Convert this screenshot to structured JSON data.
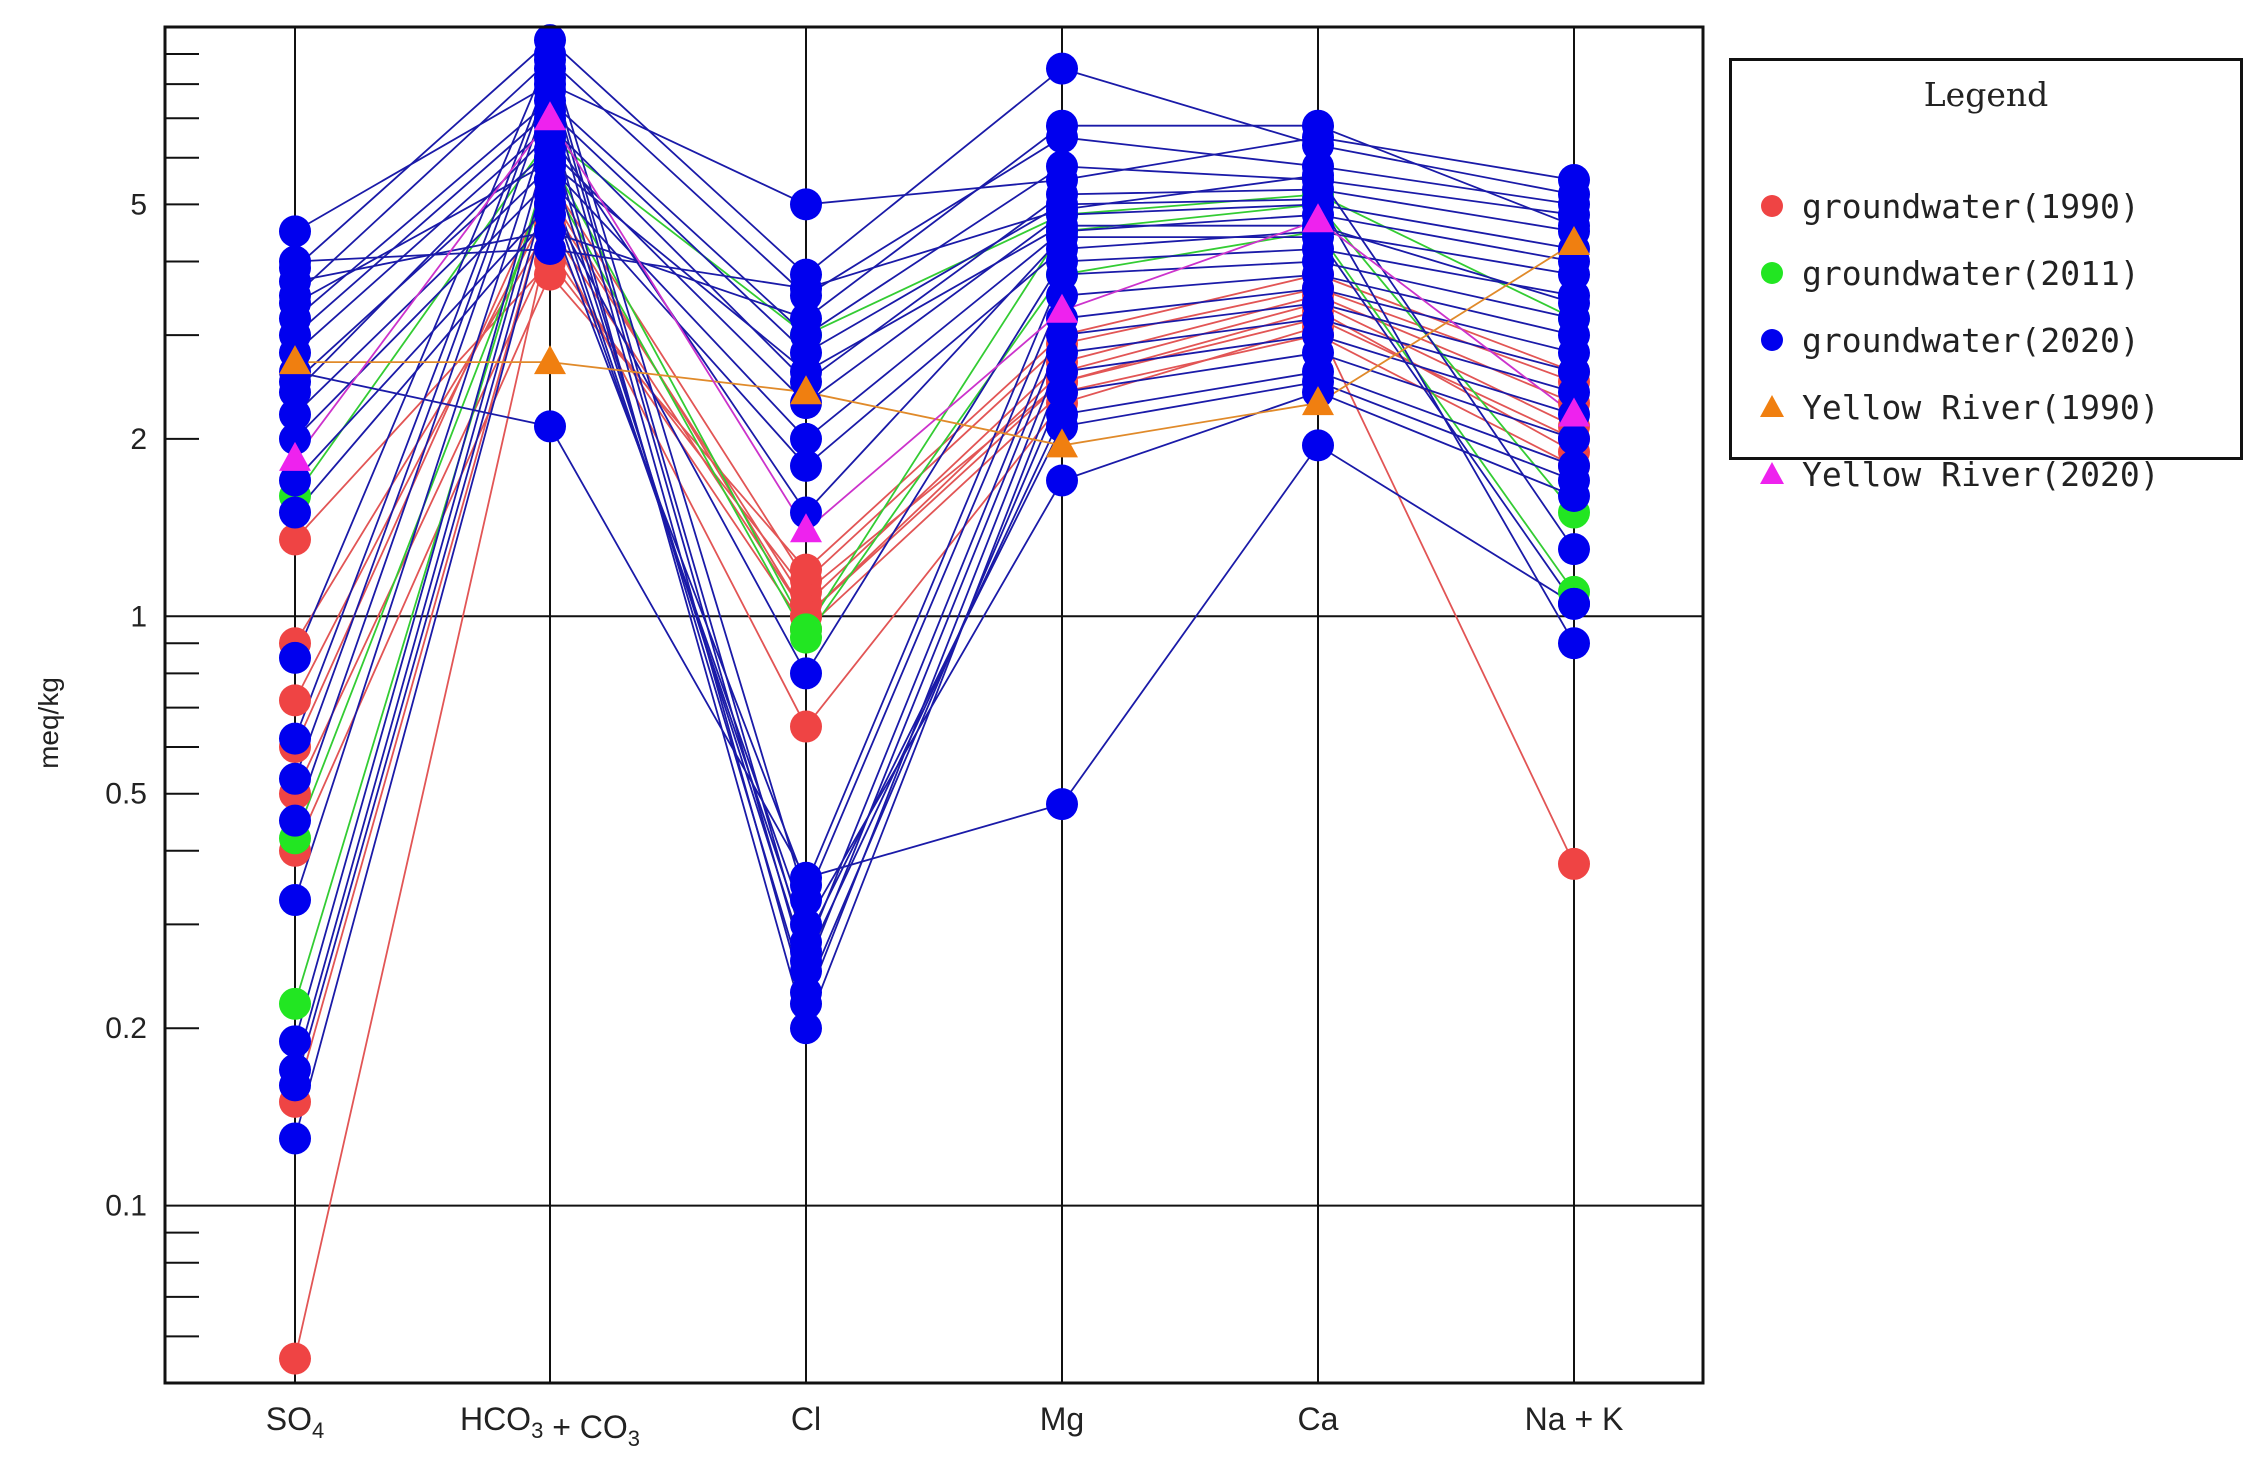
{
  "chart_data": {
    "type": "line",
    "subtype": "schoeller-diagram",
    "title": "",
    "ylabel": "meq/kg",
    "yscale": "log",
    "ylim": [
      0.05,
      10
    ],
    "categories": [
      "SO4",
      "HCO3 + CO3",
      "Cl",
      "Mg",
      "Ca",
      "Na + K"
    ],
    "category_labels": [
      {
        "base": "SO",
        "sub": "4",
        "tail": ""
      },
      {
        "base": "HCO",
        "sub": "3",
        "tail": " + CO",
        "sub2": "3"
      },
      {
        "base": "Cl",
        "sub": "",
        "tail": ""
      },
      {
        "base": "Mg",
        "sub": "",
        "tail": ""
      },
      {
        "base": "Ca",
        "sub": "",
        "tail": ""
      },
      {
        "base": "Na + K",
        "sub": "",
        "tail": ""
      }
    ],
    "yticks": [
      {
        "value": 5,
        "label": "5"
      },
      {
        "value": 2,
        "label": "2"
      },
      {
        "value": 1,
        "label": "1"
      },
      {
        "value": 0.5,
        "label": "0.5"
      },
      {
        "value": 0.2,
        "label": "0.2"
      },
      {
        "value": 0.1,
        "label": "0.1"
      }
    ],
    "major_gridlines": [
      1,
      0.1
    ],
    "legend": {
      "title": "Legend",
      "position": "top-right outside",
      "entries": [
        {
          "label": "groundwater(1990)",
          "marker": "circle",
          "color": "#ef4444"
        },
        {
          "label": "groundwater(2011)",
          "marker": "circle",
          "color": "#22e622"
        },
        {
          "label": "groundwater(2020)",
          "marker": "circle",
          "color": "#0000ee"
        },
        {
          "label": "Yellow River(1990)",
          "marker": "triangle",
          "color": "#f07f10"
        },
        {
          "label": "Yellow River(2020)",
          "marker": "triangle",
          "color": "#ee22ee"
        }
      ]
    },
    "series": [
      {
        "name": "groundwater(1990)",
        "color": "#ef4444",
        "line_color": "#e25555",
        "marker": "circle",
        "samples": [
          [
            0.055,
            4.5,
            0.65,
            2.3,
            3.1,
            0.38
          ],
          [
            1.35,
            4.0,
            1.1,
            2.5,
            3.3,
            1.9
          ],
          [
            0.9,
            4.6,
            1.0,
            2.6,
            3.4,
            2.1
          ],
          [
            0.72,
            5.0,
            1.05,
            2.7,
            3.5,
            2.3
          ],
          [
            0.6,
            5.5,
            1.15,
            2.9,
            3.6,
            2.5
          ],
          [
            0.5,
            4.2,
            0.95,
            2.4,
            3.0,
            1.8
          ],
          [
            0.4,
            3.8,
            1.2,
            3.0,
            3.8,
            2.6
          ],
          [
            0.15,
            5.2,
            1.0,
            2.5,
            3.2,
            2.0
          ]
        ]
      },
      {
        "name": "groundwater(2011)",
        "color": "#22e622",
        "line_color": "#33cc33",
        "marker": "circle",
        "samples": [
          [
            0.22,
            6.0,
            0.95,
            4.5,
            5.0,
            1.5
          ],
          [
            0.42,
            5.5,
            0.92,
            3.8,
            4.5,
            1.1
          ],
          [
            1.6,
            6.5,
            3.0,
            4.8,
            5.2,
            3.2
          ]
        ]
      },
      {
        "name": "groundwater(2020)",
        "color": "#0000ee",
        "line_color": "#1a1aa8",
        "marker": "circle",
        "samples": [
          [
            4.5,
            8.0,
            5.0,
            5.5,
            6.5,
            5.5
          ],
          [
            3.9,
            9.5,
            3.8,
            8.5,
            6.3,
            5.2
          ],
          [
            3.5,
            8.8,
            3.5,
            6.5,
            5.8,
            5.0
          ],
          [
            3.2,
            7.5,
            3.0,
            5.8,
            5.5,
            4.8
          ],
          [
            2.8,
            6.8,
            2.5,
            5.2,
            5.3,
            4.5
          ],
          [
            2.5,
            6.2,
            2.3,
            4.8,
            5.0,
            4.2
          ],
          [
            2.2,
            5.8,
            2.0,
            4.5,
            4.8,
            4.0
          ],
          [
            2.0,
            5.5,
            1.8,
            4.2,
            4.5,
            3.8
          ],
          [
            1.7,
            5.0,
            0.8,
            4.0,
            4.2,
            3.5
          ],
          [
            1.5,
            4.8,
            0.35,
            3.8,
            4.0,
            3.2
          ],
          [
            0.85,
            9.0,
            0.33,
            3.5,
            3.8,
            3.0
          ],
          [
            0.62,
            8.5,
            0.27,
            3.2,
            3.6,
            2.8
          ],
          [
            0.53,
            8.2,
            0.25,
            3.0,
            3.4,
            2.6
          ],
          [
            0.45,
            7.8,
            0.22,
            2.8,
            3.2,
            2.4
          ],
          [
            0.33,
            7.0,
            0.2,
            2.6,
            3.0,
            2.2
          ],
          [
            0.19,
            6.5,
            0.23,
            2.4,
            2.8,
            2.0
          ],
          [
            0.17,
            6.0,
            0.26,
            2.2,
            2.6,
            1.8
          ],
          [
            0.16,
            5.5,
            0.28,
            2.1,
            2.5,
            1.7
          ],
          [
            0.13,
            5.2,
            0.3,
            1.7,
            2.4,
            1.6
          ],
          [
            2.6,
            2.1,
            0.36,
            0.48,
            1.95,
            1.05
          ],
          [
            3.7,
            4.5,
            3.2,
            6.8,
            6.8,
            4.6
          ],
          [
            4.0,
            4.2,
            3.6,
            4.9,
            5.6,
            1.3
          ],
          [
            3.0,
            7.2,
            2.8,
            5.0,
            5.1,
            0.9
          ],
          [
            2.4,
            6.6,
            1.5,
            4.4,
            4.4,
            1.05
          ],
          [
            3.4,
            5.9,
            2.6,
            4.6,
            4.6,
            3.4
          ]
        ]
      },
      {
        "name": "Yellow River(1990)",
        "color": "#f07f10",
        "line_color": "#e08a2a",
        "marker": "triangle",
        "samples": [
          [
            2.7,
            2.7,
            2.4,
            1.95,
            2.3,
            4.3
          ]
        ]
      },
      {
        "name": "Yellow River(2020)",
        "color": "#ee22ee",
        "line_color": "#cc33cc",
        "marker": "triangle",
        "samples": [
          [
            1.85,
            7.0,
            1.4,
            3.3,
            4.7,
            2.2
          ]
        ]
      }
    ]
  }
}
